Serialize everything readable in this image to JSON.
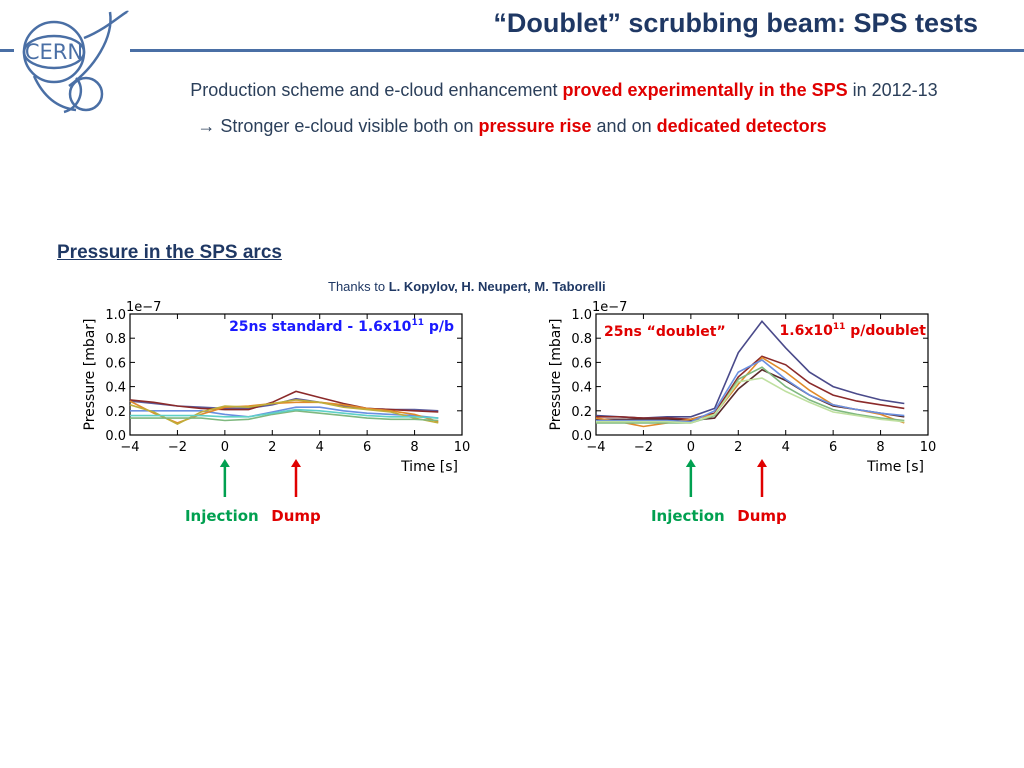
{
  "slide": {
    "title": "“Doublet” scrubbing beam: SPS tests",
    "line1": {
      "part1": "Production scheme and e-cloud enhancement ",
      "highlight": "proved experimentally in the SPS",
      "part2": " in 2012-13"
    },
    "line2": {
      "arrow": "→",
      "part1": " Stronger e-cloud visible both on ",
      "highlight1": "pressure rise",
      "part2": " and on ",
      "highlight2": "dedicated detectors"
    },
    "section_heading": "Pressure in the SPS arcs",
    "credits": {
      "prefix": "Thanks to ",
      "names": "L. Kopylov, H. Neupert, M. Taborelli"
    },
    "logo_text": "CERN",
    "colors": {
      "title": "#1f3864",
      "rule": "#4a6fa5",
      "highlight": "#e00000",
      "injection": "#00a050",
      "dump": "#e00000"
    },
    "annotations": {
      "injection_label": "Injection",
      "dump_label": "Dump"
    }
  },
  "chart_data": [
    {
      "type": "line",
      "title": "",
      "annotation_text": "25ns standard - 1.6x10",
      "annotation_sup": "11",
      "annotation_tail": " p/b",
      "annotation_color": "#1a1aff",
      "xlabel": "Time [s]",
      "ylabel": "Pressure [mbar]",
      "y_scale_label": "1e−7",
      "xlim": [
        -4,
        10
      ],
      "ylim": [
        0,
        1.0
      ],
      "x_ticks": [
        "−4",
        "−2",
        "0",
        "2",
        "4",
        "6",
        "8",
        "10"
      ],
      "y_ticks": [
        "0.0",
        "0.2",
        "0.4",
        "0.6",
        "0.8",
        "1.0"
      ],
      "x": [
        -4,
        -3,
        -2,
        -1,
        0,
        1,
        2,
        3,
        4,
        5,
        6,
        7,
        8,
        9
      ],
      "series": [
        {
          "color": "#5c5c9c",
          "values": [
            0.28,
            0.26,
            0.24,
            0.23,
            0.22,
            0.22,
            0.25,
            0.3,
            0.27,
            0.24,
            0.22,
            0.21,
            0.21,
            0.2
          ]
        },
        {
          "color": "#8b2a2a",
          "values": [
            0.29,
            0.27,
            0.24,
            0.22,
            0.21,
            0.21,
            0.27,
            0.36,
            0.31,
            0.26,
            0.22,
            0.21,
            0.2,
            0.19
          ]
        },
        {
          "color": "#6a8fe0",
          "values": [
            0.2,
            0.2,
            0.2,
            0.2,
            0.17,
            0.15,
            0.19,
            0.23,
            0.23,
            0.2,
            0.18,
            0.17,
            0.16,
            0.14
          ]
        },
        {
          "color": "#e08a2a",
          "values": [
            0.28,
            0.18,
            0.1,
            0.17,
            0.23,
            0.24,
            0.26,
            0.27,
            0.27,
            0.25,
            0.22,
            0.2,
            0.17,
            0.11
          ]
        },
        {
          "color": "#bfae3a",
          "values": [
            0.25,
            0.19,
            0.09,
            0.19,
            0.24,
            0.23,
            0.26,
            0.29,
            0.27,
            0.23,
            0.21,
            0.19,
            0.14,
            0.1
          ]
        },
        {
          "color": "#7fb87f",
          "values": [
            0.14,
            0.14,
            0.14,
            0.14,
            0.12,
            0.13,
            0.17,
            0.2,
            0.18,
            0.16,
            0.14,
            0.13,
            0.13,
            0.12
          ]
        },
        {
          "color": "#5fd0c8",
          "values": [
            0.16,
            0.16,
            0.16,
            0.16,
            0.15,
            0.15,
            0.18,
            0.21,
            0.2,
            0.18,
            0.16,
            0.15,
            0.15,
            0.14
          ]
        }
      ],
      "markers": [
        {
          "label": "Injection",
          "x": 0,
          "color": "#00a050"
        },
        {
          "label": "Dump",
          "x": 3,
          "color": "#e00000"
        }
      ]
    },
    {
      "type": "line",
      "title": "",
      "annotation_text": "25ns “doublet”",
      "annotation2_text": "1.6x10",
      "annotation2_sup": "11",
      "annotation2_tail": " p/doublet",
      "annotation_color": "#e00000",
      "xlabel": "Time [s]",
      "ylabel": "Pressure [mbar]",
      "y_scale_label": "1e−7",
      "xlim": [
        -4,
        10
      ],
      "ylim": [
        0,
        1.0
      ],
      "x_ticks": [
        "−4",
        "−2",
        "0",
        "2",
        "4",
        "6",
        "8",
        "10"
      ],
      "y_ticks": [
        "0.0",
        "0.2",
        "0.4",
        "0.6",
        "0.8",
        "1.0"
      ],
      "x": [
        -4,
        -3,
        -2,
        -1,
        0,
        1,
        2,
        3,
        4,
        5,
        6,
        7,
        8,
        9
      ],
      "series": [
        {
          "color": "#4a4a8a",
          "values": [
            0.16,
            0.15,
            0.14,
            0.15,
            0.15,
            0.22,
            0.68,
            0.94,
            0.72,
            0.52,
            0.4,
            0.34,
            0.29,
            0.26
          ]
        },
        {
          "color": "#8b2a2a",
          "values": [
            0.15,
            0.15,
            0.14,
            0.14,
            0.13,
            0.18,
            0.48,
            0.65,
            0.58,
            0.43,
            0.33,
            0.28,
            0.25,
            0.22
          ]
        },
        {
          "color": "#5a2a2a",
          "values": [
            0.13,
            0.13,
            0.13,
            0.13,
            0.12,
            0.14,
            0.38,
            0.54,
            0.45,
            0.33,
            0.24,
            0.21,
            0.18,
            0.15
          ]
        },
        {
          "color": "#e08a2a",
          "values": [
            0.14,
            0.11,
            0.07,
            0.1,
            0.13,
            0.17,
            0.42,
            0.64,
            0.52,
            0.37,
            0.25,
            0.21,
            0.17,
            0.1
          ]
        },
        {
          "color": "#6a8fe0",
          "values": [
            0.12,
            0.12,
            0.12,
            0.12,
            0.11,
            0.2,
            0.52,
            0.62,
            0.46,
            0.33,
            0.25,
            0.21,
            0.18,
            0.16
          ]
        },
        {
          "color": "#7fb87f",
          "values": [
            0.1,
            0.1,
            0.1,
            0.1,
            0.1,
            0.16,
            0.46,
            0.56,
            0.4,
            0.29,
            0.21,
            0.17,
            0.14,
            0.12
          ]
        },
        {
          "color": "#bfe0a0",
          "values": [
            0.11,
            0.11,
            0.11,
            0.11,
            0.1,
            0.17,
            0.44,
            0.47,
            0.36,
            0.27,
            0.19,
            0.16,
            0.13,
            0.11
          ]
        }
      ],
      "markers": [
        {
          "label": "Injection",
          "x": 0,
          "color": "#00a050"
        },
        {
          "label": "Dump",
          "x": 3,
          "color": "#e00000"
        }
      ]
    }
  ]
}
